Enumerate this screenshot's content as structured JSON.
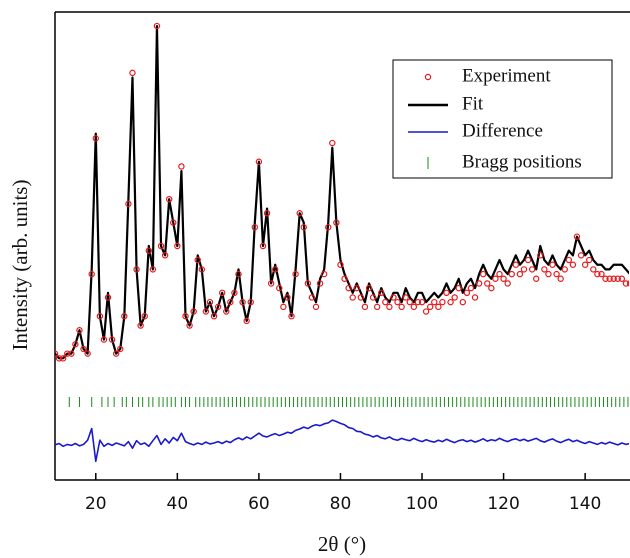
{
  "chart_data": {
    "type": "line",
    "x_label": "2θ (°)",
    "y_label": "Intensity (arb. units)",
    "xlim": [
      10,
      151
    ],
    "xticks": [
      20,
      40,
      60,
      80,
      100,
      120,
      140
    ],
    "ylim": [
      0,
      100
    ],
    "x": [
      10,
      11,
      12,
      13,
      14,
      15,
      16,
      17,
      18,
      19,
      20,
      21,
      22,
      23,
      24,
      25,
      26,
      27,
      28,
      29,
      30,
      31,
      32,
      33,
      34,
      35,
      36,
      37,
      38,
      39,
      40,
      41,
      42,
      43,
      44,
      45,
      46,
      47,
      48,
      49,
      50,
      51,
      52,
      53,
      54,
      55,
      56,
      57,
      58,
      59,
      60,
      61,
      62,
      63,
      64,
      65,
      66,
      67,
      68,
      69,
      70,
      71,
      72,
      73,
      74,
      75,
      76,
      77,
      78,
      79,
      80,
      81,
      82,
      83,
      84,
      85,
      86,
      87,
      88,
      89,
      90,
      91,
      92,
      93,
      94,
      95,
      96,
      97,
      98,
      99,
      100,
      101,
      102,
      103,
      104,
      105,
      106,
      107,
      108,
      109,
      110,
      111,
      112,
      113,
      114,
      115,
      116,
      117,
      118,
      119,
      120,
      121,
      122,
      123,
      124,
      125,
      126,
      127,
      128,
      129,
      130,
      131,
      132,
      133,
      134,
      135,
      136,
      137,
      138,
      139,
      140,
      141,
      142,
      143,
      144,
      145,
      146,
      147,
      148,
      149,
      150,
      151
    ],
    "series": [
      {
        "name": "Experiment",
        "color": "#e8191c",
        "style": "markers",
        "values": [
          27,
          26,
          26,
          27,
          27,
          29,
          32,
          28,
          27,
          44,
          73,
          35,
          30,
          39,
          30,
          27,
          28,
          35,
          59,
          87,
          45,
          33,
          35,
          49,
          45,
          97,
          50,
          48,
          60,
          55,
          50,
          67,
          35,
          33,
          36,
          47,
          45,
          36,
          38,
          35,
          37,
          40,
          36,
          38,
          40,
          44,
          38,
          34,
          38,
          54,
          68,
          50,
          57,
          42,
          45,
          41,
          37,
          39,
          35,
          44,
          57,
          54,
          42,
          39,
          37,
          42,
          44,
          54,
          72,
          55,
          46,
          43,
          41,
          39,
          41,
          39,
          37,
          41,
          39,
          37,
          40,
          38,
          37,
          39,
          38,
          37,
          39,
          38,
          37,
          38,
          38,
          36,
          37,
          38,
          37,
          38,
          40,
          38,
          39,
          41,
          38,
          40,
          41,
          39,
          42,
          44,
          42,
          41,
          43,
          44,
          43,
          42,
          44,
          46,
          44,
          45,
          47,
          45,
          43,
          48,
          45,
          44,
          46,
          44,
          43,
          45,
          47,
          46,
          52,
          48,
          46,
          47,
          45,
          44,
          44,
          43,
          43,
          43,
          43,
          43,
          42,
          42
        ]
      },
      {
        "name": "Fit",
        "color": "#000000",
        "style": "line",
        "values": [
          27,
          26,
          26,
          27,
          27,
          29,
          32,
          28,
          27,
          45,
          74,
          35,
          30,
          40,
          30,
          27,
          28,
          35,
          60,
          86,
          45,
          33,
          35,
          50,
          45,
          97,
          50,
          48,
          60,
          55,
          50,
          66,
          35,
          33,
          36,
          48,
          45,
          36,
          38,
          35,
          37,
          40,
          36,
          38,
          40,
          45,
          38,
          34,
          38,
          55,
          68,
          50,
          58,
          42,
          46,
          42,
          38,
          40,
          35,
          45,
          57,
          55,
          42,
          40,
          38,
          43,
          45,
          55,
          71,
          55,
          47,
          44,
          42,
          40,
          42,
          40,
          38,
          42,
          40,
          38,
          41,
          39,
          38,
          40,
          40,
          38,
          41,
          39,
          38,
          40,
          40,
          38,
          39,
          40,
          39,
          40,
          42,
          40,
          41,
          43,
          40,
          42,
          43,
          41,
          44,
          46,
          44,
          43,
          45,
          47,
          45,
          44,
          46,
          48,
          46,
          47,
          49,
          47,
          45,
          50,
          47,
          46,
          48,
          46,
          45,
          47,
          49,
          48,
          52,
          50,
          48,
          49,
          47,
          46,
          46,
          45,
          45,
          46,
          46,
          46,
          45,
          44
        ]
      },
      {
        "name": "Difference",
        "color": "#1a1acc",
        "style": "line",
        "values": [
          7.5,
          7.8,
          7.2,
          7.6,
          7.4,
          7.8,
          7.3,
          7.6,
          8.5,
          11,
          4,
          8.5,
          7.2,
          7.8,
          7.4,
          7.9,
          7.6,
          7.3,
          8.2,
          6.8,
          8.4,
          7.6,
          7.9,
          7.2,
          8.4,
          9.5,
          7.6,
          8.8,
          7.9,
          9.1,
          8.4,
          10,
          8.2,
          7.8,
          7.5,
          7.9,
          7.6,
          8.1,
          7.7,
          7.9,
          8.2,
          7.8,
          8.3,
          8,
          8.6,
          9,
          8.6,
          9.2,
          8.8,
          9.4,
          10,
          9.4,
          9.2,
          9.6,
          9.9,
          9.5,
          9.8,
          10.2,
          10,
          10.6,
          10.9,
          11.3,
          11,
          11.5,
          11.8,
          11.6,
          12,
          12.2,
          12.8,
          12.5,
          12.1,
          11.8,
          11.2,
          11,
          10.4,
          10.3,
          9.8,
          9.6,
          9.2,
          9.5,
          9,
          8.8,
          9.2,
          8.7,
          8.5,
          8.9,
          8.6,
          8.4,
          8.9,
          8.5,
          8.2,
          8.6,
          8.3,
          8.1,
          8.5,
          8.2,
          8.7,
          8.3,
          8,
          8.4,
          8.6,
          8.2,
          8.5,
          8.1,
          8.4,
          8.8,
          8.3,
          8.6,
          8.4,
          8.9,
          8.5,
          8.2,
          8.6,
          8.8,
          8.4,
          8.7,
          8.3,
          8.6,
          8.9,
          8.4,
          8.1,
          8.5,
          8.8,
          8.3,
          8,
          8.4,
          8.7,
          8.2,
          8.5,
          8.1,
          7.8,
          8.2,
          7.9,
          7.6,
          8,
          7.7,
          8.1,
          7.8,
          7.5,
          7.9,
          7.6,
          7.8
        ]
      }
    ],
    "bragg": {
      "name": "Bragg positions",
      "color": "#1a8a1a",
      "x": [
        13.5,
        16,
        19,
        21.5,
        23,
        24.5,
        26.5,
        27.5,
        29,
        30.5,
        31.5,
        33,
        34,
        35.5,
        36.5,
        37.5,
        38.5,
        39.5,
        41,
        42,
        43,
        44.5,
        45.5,
        46.5,
        47.5,
        48.5,
        49.5,
        50.5,
        51.5,
        52.5,
        53.5,
        54.5,
        55.5,
        56.5,
        57.5,
        58.5,
        59.5,
        60.5,
        61.5,
        62.5,
        63.5,
        64.5,
        65.5,
        66.5,
        67.5,
        68.5,
        69.5,
        70.5,
        71.5,
        72.5,
        73.5,
        74.5,
        75.5,
        76.5,
        77.5,
        78.5,
        79.5,
        80.5,
        81.5,
        82.5,
        83.5,
        84.5,
        85.5,
        86.5,
        87.5,
        88.5,
        89.5,
        90.5,
        91.5,
        92.5,
        93.5,
        94.5,
        95.5,
        96.5,
        97.5,
        98.5,
        99.5,
        100.5,
        101.5,
        102.5,
        103.5,
        104.5,
        105.5,
        106.5,
        107.5,
        108.5,
        109.5,
        110.5,
        111.5,
        112.5,
        113.5,
        114.5,
        115.5,
        116.5,
        117.5,
        118.5,
        119.5,
        120.5,
        121.5,
        122.5,
        123.5,
        124.5,
        125.5,
        126.5,
        127.5,
        128.5,
        129.5,
        130.5,
        131.5,
        132.5,
        133.5,
        134.5,
        135.5,
        136.5,
        137.5,
        138.5,
        139.5,
        140.5,
        141.5,
        142.5,
        143.5,
        144.5,
        145.5,
        146.5,
        147.5,
        148.5,
        149.5,
        150.5
      ]
    }
  }
}
